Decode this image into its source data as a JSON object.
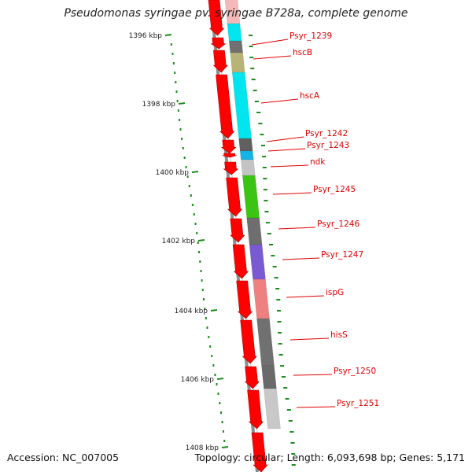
{
  "title": "Pseudomonas syringae pv. syringae B728a, complete genome",
  "footer": {
    "accession": "Accession: NC_007005",
    "summary": "Topology: circular; Length: 6,093,698 bp; Genes: 5,171"
  },
  "colors": {
    "backbone": "#8c8c8c",
    "arrow": "#ff0000",
    "label": "#e00000",
    "gc_dots": "#1a8c1a"
  },
  "ruler": [
    {
      "label": "1396 kbp"
    },
    {
      "label": "1398 kbp"
    },
    {
      "label": "1400 kbp"
    },
    {
      "label": "1402 kbp"
    },
    {
      "label": "1404 kbp"
    },
    {
      "label": "1406 kbp"
    },
    {
      "label": "1408 kbp"
    }
  ],
  "genes": [
    {
      "label": "",
      "color": "#f4b8b8"
    },
    {
      "label": "Psyr_1239",
      "color": "#00e5ee"
    },
    {
      "label": "hscB",
      "color": "#707070"
    },
    {
      "label": "hscA",
      "color": "#b8b478"
    },
    {
      "label": "Psyr_1242",
      "color": "#00e5ee"
    },
    {
      "label": "Psyr_1243",
      "color": "#606060"
    },
    {
      "label": "ndk",
      "color": "#14b4e6"
    },
    {
      "label": "Psyr_1245",
      "color": "#c4c4c4"
    },
    {
      "label": "Psyr_1246",
      "color": "#3cc414"
    },
    {
      "label": "Psyr_1247",
      "color": "#6e6e6e"
    },
    {
      "label": "ispG",
      "color": "#7a5ad2"
    },
    {
      "label": "hisS",
      "color": "#ee8080"
    },
    {
      "label": "Psyr_1250",
      "color": "#707070"
    },
    {
      "label": "Psyr_1251",
      "color": "#6a6a6a"
    },
    {
      "label": "",
      "color": "#c8c8c8"
    }
  ]
}
